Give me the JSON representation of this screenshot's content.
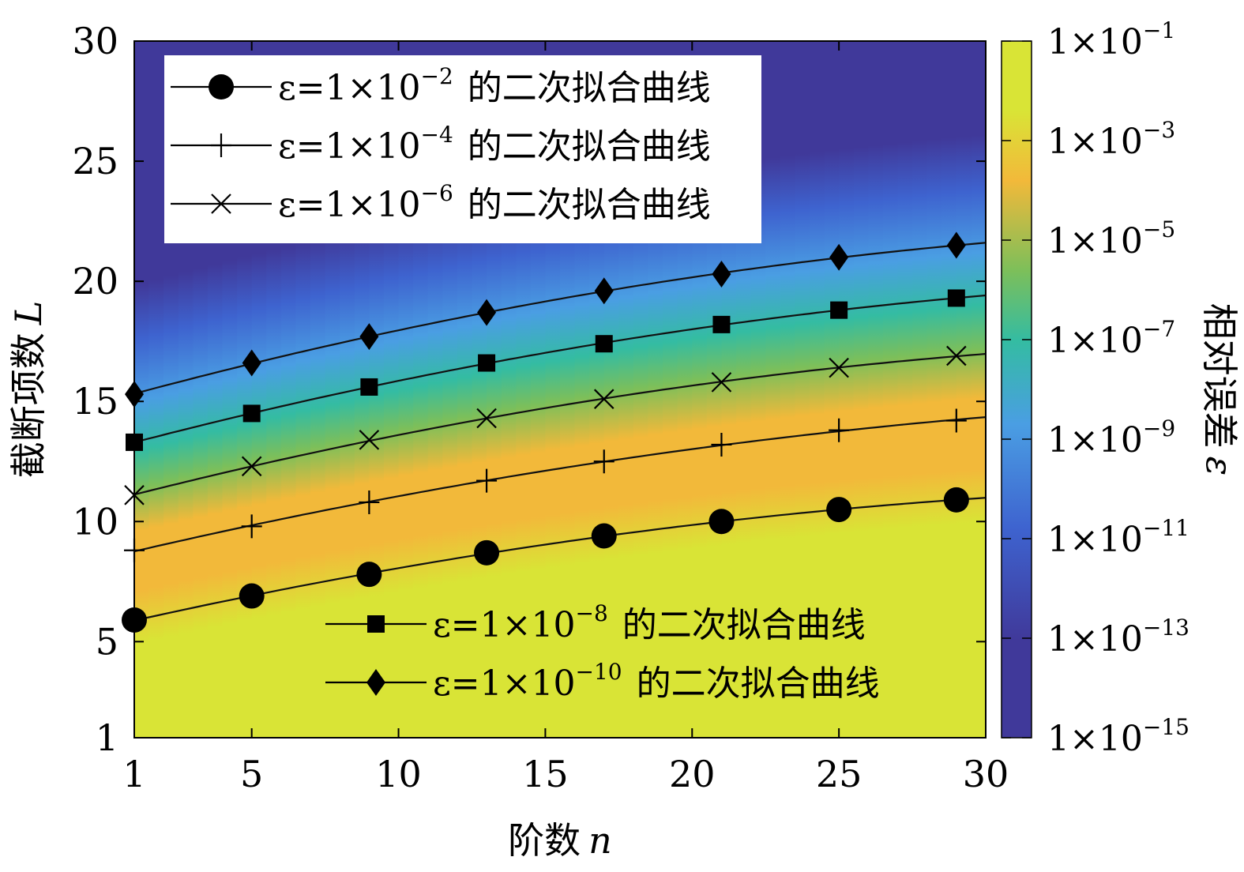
{
  "chart_data": {
    "type": "heatmap",
    "title": "",
    "xlabel": "阶数",
    "xlabel_var": "n",
    "ylabel": "截断项数",
    "ylabel_var": "L",
    "xlim": [
      1,
      30
    ],
    "ylim": [
      1,
      30
    ],
    "x_ticks": [
      1,
      5,
      10,
      15,
      20,
      25,
      30
    ],
    "y_ticks": [
      1,
      5,
      10,
      15,
      20,
      25,
      30
    ],
    "colorbar": {
      "label": "相对误差",
      "label_var": "ε",
      "scale": "log",
      "range": [
        "1e-15",
        "1e-1"
      ],
      "ticks": [
        {
          "mant": "1×10",
          "exp": "−1"
        },
        {
          "mant": "1×10",
          "exp": "−3"
        },
        {
          "mant": "1×10",
          "exp": "−5"
        },
        {
          "mant": "1×10",
          "exp": "−7"
        },
        {
          "mant": "1×10",
          "exp": "−9"
        },
        {
          "mant": "1×10",
          "exp": "−11"
        },
        {
          "mant": "1×10",
          "exp": "−13"
        },
        {
          "mant": "1×10",
          "exp": "−15"
        }
      ],
      "colors": [
        "#d9e436",
        "#f2b93a",
        "#7cbf5a",
        "#34bca2",
        "#4a9ee3",
        "#3e63cf",
        "#40399a"
      ]
    },
    "x": [
      1,
      5,
      9,
      13,
      17,
      21,
      25,
      29
    ],
    "series": [
      {
        "name_prefix": "ε=1×10",
        "exp": "−2",
        "name_suffix": "的二次拟合曲线",
        "marker": "circle",
        "values": [
          5.9,
          6.9,
          7.8,
          8.7,
          9.4,
          10.0,
          10.5,
          10.9
        ]
      },
      {
        "name_prefix": "ε=1×10",
        "exp": "−4",
        "name_suffix": "的二次拟合曲线",
        "marker": "plus",
        "values": [
          8.8,
          9.8,
          10.8,
          11.7,
          12.5,
          13.2,
          13.8,
          14.2
        ]
      },
      {
        "name_prefix": "ε=1×10",
        "exp": "−6",
        "name_suffix": "的二次拟合曲线",
        "marker": "x",
        "values": [
          11.1,
          12.3,
          13.4,
          14.3,
          15.1,
          15.8,
          16.4,
          16.9
        ]
      },
      {
        "name_prefix": "ε=1×10",
        "exp": "−8",
        "name_suffix": "的二次拟合曲线",
        "marker": "square",
        "values": [
          13.3,
          14.5,
          15.6,
          16.6,
          17.4,
          18.2,
          18.8,
          19.3
        ]
      },
      {
        "name_prefix": "ε=1×10",
        "exp": "−10",
        "name_suffix": "的二次拟合曲线",
        "marker": "diamond",
        "values": [
          15.3,
          16.6,
          17.7,
          18.7,
          19.6,
          20.3,
          21.0,
          21.5
        ]
      }
    ],
    "legends": [
      {
        "placement": "top-left",
        "series": [
          0,
          1,
          2
        ]
      },
      {
        "placement": "bottom-right",
        "series": [
          3,
          4
        ]
      }
    ]
  }
}
